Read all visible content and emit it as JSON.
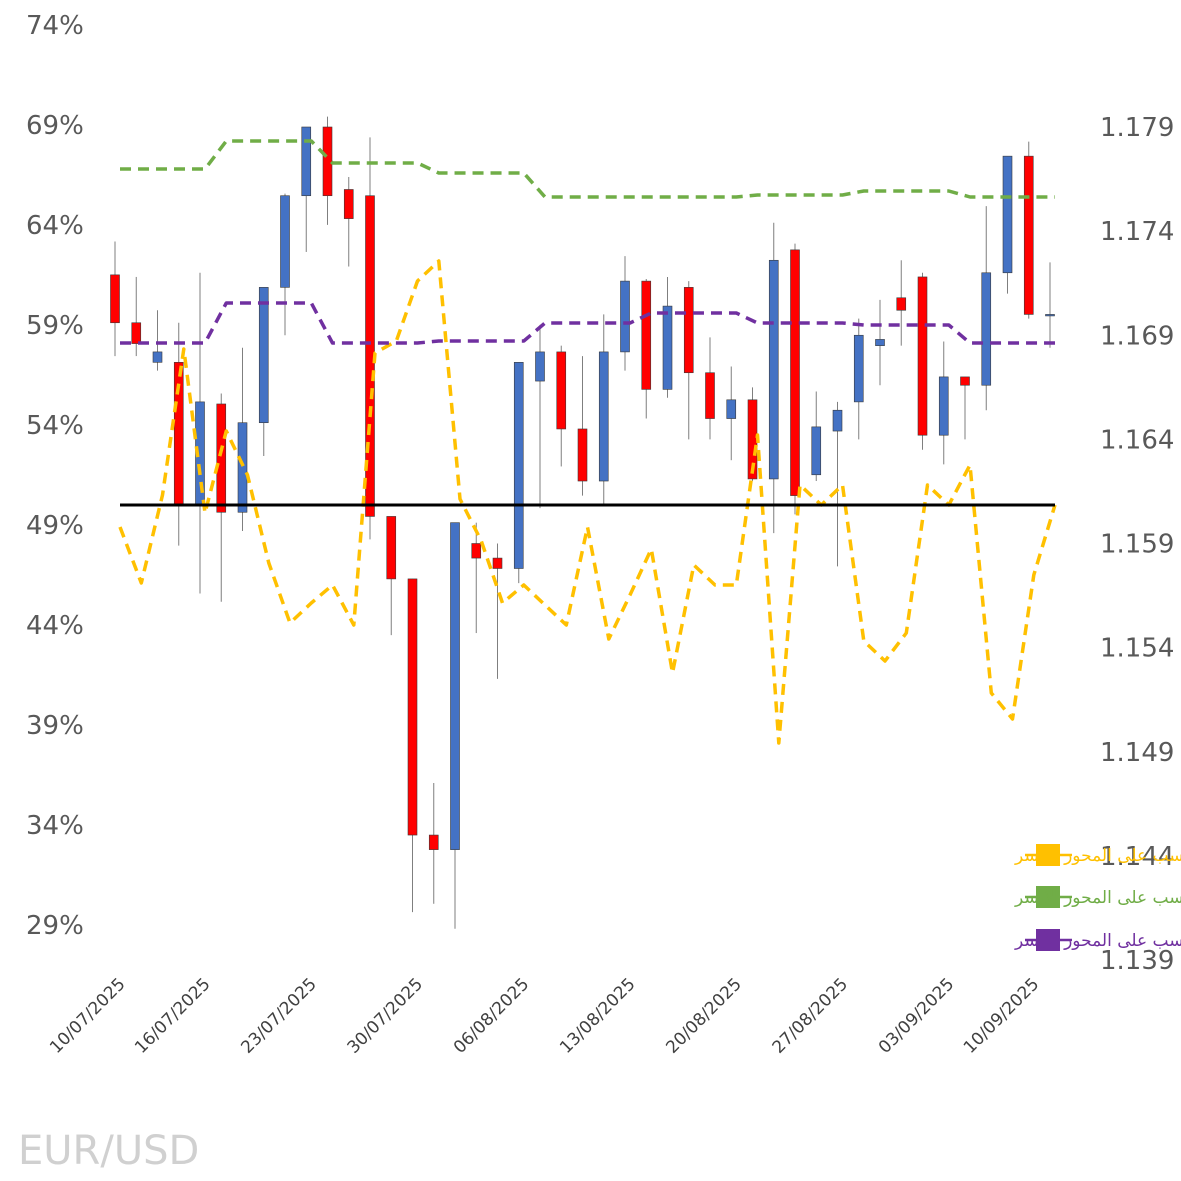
{
  "pair_label": "EUR/USD",
  "chart_data": {
    "type": "candlestick",
    "title": "EUR/USD",
    "y_left": {
      "range": [
        0.27,
        0.74
      ],
      "ticks": [
        0.29,
        0.34,
        0.39,
        0.44,
        0.49,
        0.54,
        0.59,
        0.64,
        0.69,
        0.74
      ],
      "tick_labels": [
        "29%",
        "34%",
        "39%",
        "44%",
        "49%",
        "54%",
        "59%",
        "64%",
        "69%",
        "74%"
      ]
    },
    "y_right": {
      "range": [
        1.139,
        1.179
      ],
      "ticks": [
        1.139,
        1.144,
        1.149,
        1.154,
        1.159,
        1.164,
        1.169,
        1.174,
        1.179
      ],
      "tick_labels": [
        "1.139",
        "1.144",
        "1.149",
        "1.154",
        "1.159",
        "1.164",
        "1.169",
        "1.174",
        "1.179"
      ]
    },
    "x_tick_labels": [
      {
        "index": 0,
        "label": "10/07/2025"
      },
      {
        "index": 4,
        "label": "16/07/2025"
      },
      {
        "index": 9,
        "label": "23/07/2025"
      },
      {
        "index": 14,
        "label": "30/07/2025"
      },
      {
        "index": 19,
        "label": "06/08/2025"
      },
      {
        "index": 24,
        "label": "13/08/2025"
      },
      {
        "index": 29,
        "label": "20/08/2025"
      },
      {
        "index": 34,
        "label": "27/08/2025"
      },
      {
        "index": 39,
        "label": "03/09/2025"
      },
      {
        "index": 43,
        "label": "10/09/2025"
      }
    ],
    "reference_line": 0.5,
    "candles": [
      {
        "o": 1.1719,
        "h": 1.1735,
        "l": 1.168,
        "c": 1.1696
      },
      {
        "o": 1.1696,
        "h": 1.1718,
        "l": 1.168,
        "c": 1.1686
      },
      {
        "o": 1.1677,
        "h": 1.1702,
        "l": 1.1673,
        "c": 1.1682
      },
      {
        "o": 1.1677,
        "h": 1.1696,
        "l": 1.1589,
        "c": 1.1609
      },
      {
        "o": 1.1609,
        "h": 1.172,
        "l": 1.1566,
        "c": 1.1658
      },
      {
        "o": 1.1657,
        "h": 1.1662,
        "l": 1.1562,
        "c": 1.1605
      },
      {
        "o": 1.1605,
        "h": 1.1684,
        "l": 1.1596,
        "c": 1.1648
      },
      {
        "o": 1.1648,
        "h": 1.1705,
        "l": 1.1632,
        "c": 1.1713
      },
      {
        "o": 1.1713,
        "h": 1.1758,
        "l": 1.169,
        "c": 1.1757
      },
      {
        "o": 1.1757,
        "h": 1.178,
        "l": 1.173,
        "c": 1.179
      },
      {
        "o": 1.179,
        "h": 1.1795,
        "l": 1.1743,
        "c": 1.1757
      },
      {
        "o": 1.176,
        "h": 1.1766,
        "l": 1.1723,
        "c": 1.1746
      },
      {
        "o": 1.1757,
        "h": 1.1785,
        "l": 1.1592,
        "c": 1.1603
      },
      {
        "o": 1.1603,
        "h": 1.1595,
        "l": 1.1546,
        "c": 1.1573
      },
      {
        "o": 1.1573,
        "h": 1.155,
        "l": 1.1413,
        "c": 1.145
      },
      {
        "o": 1.145,
        "h": 1.1475,
        "l": 1.1417,
        "c": 1.1443
      },
      {
        "o": 1.1443,
        "h": 1.1587,
        "l": 1.1405,
        "c": 1.16
      },
      {
        "o": 1.159,
        "h": 1.16,
        "l": 1.1547,
        "c": 1.1583
      },
      {
        "o": 1.1583,
        "h": 1.159,
        "l": 1.1525,
        "c": 1.1578
      },
      {
        "o": 1.1578,
        "h": 1.167,
        "l": 1.1571,
        "c": 1.1677
      },
      {
        "o": 1.1668,
        "h": 1.1695,
        "l": 1.1607,
        "c": 1.1682
      },
      {
        "o": 1.1682,
        "h": 1.1685,
        "l": 1.1627,
        "c": 1.1645
      },
      {
        "o": 1.1645,
        "h": 1.168,
        "l": 1.1613,
        "c": 1.162
      },
      {
        "o": 1.162,
        "h": 1.17,
        "l": 1.1609,
        "c": 1.1682
      },
      {
        "o": 1.1682,
        "h": 1.1728,
        "l": 1.1673,
        "c": 1.1716
      },
      {
        "o": 1.1716,
        "h": 1.1717,
        "l": 1.165,
        "c": 1.1664
      },
      {
        "o": 1.1664,
        "h": 1.1718,
        "l": 1.166,
        "c": 1.1704
      },
      {
        "o": 1.1713,
        "h": 1.1716,
        "l": 1.164,
        "c": 1.1672
      },
      {
        "o": 1.1672,
        "h": 1.1689,
        "l": 1.164,
        "c": 1.165
      },
      {
        "o": 1.165,
        "h": 1.1675,
        "l": 1.163,
        "c": 1.1659
      },
      {
        "o": 1.1659,
        "h": 1.1665,
        "l": 1.162,
        "c": 1.1621
      },
      {
        "o": 1.1621,
        "h": 1.1744,
        "l": 1.1595,
        "c": 1.1726
      },
      {
        "o": 1.1731,
        "h": 1.1734,
        "l": 1.1604,
        "c": 1.1613
      },
      {
        "o": 1.1623,
        "h": 1.1663,
        "l": 1.162,
        "c": 1.1646
      },
      {
        "o": 1.1644,
        "h": 1.1658,
        "l": 1.1579,
        "c": 1.1654
      },
      {
        "o": 1.1658,
        "h": 1.1698,
        "l": 1.164,
        "c": 1.169
      },
      {
        "o": 1.1685,
        "h": 1.1707,
        "l": 1.1666,
        "c": 1.1688
      },
      {
        "o": 1.1708,
        "h": 1.1726,
        "l": 1.1685,
        "c": 1.1702
      },
      {
        "o": 1.1718,
        "h": 1.172,
        "l": 1.1635,
        "c": 1.1642
      },
      {
        "o": 1.1642,
        "h": 1.1687,
        "l": 1.1628,
        "c": 1.167
      },
      {
        "o": 1.167,
        "h": 1.1665,
        "l": 1.164,
        "c": 1.1666
      },
      {
        "o": 1.1666,
        "h": 1.1752,
        "l": 1.1654,
        "c": 1.172
      },
      {
        "o": 1.172,
        "h": 1.1773,
        "l": 1.171,
        "c": 1.1776
      },
      {
        "o": 1.1776,
        "h": 1.1783,
        "l": 1.1698,
        "c": 1.17
      },
      {
        "o": 1.17,
        "h": 1.1725,
        "l": 1.1684,
        "c": 1.17
      }
    ],
    "series": [
      {
        "name": "توجه عملاء، نسبة الشراء، النسب على المحور الأيسر",
        "color": "#FFC000",
        "axis": "left",
        "values": [
          0.489,
          0.461,
          0.505,
          0.578,
          0.496,
          0.537,
          0.515,
          0.471,
          0.441,
          0.451,
          0.46,
          0.44,
          0.576,
          0.582,
          0.612,
          0.622,
          0.503,
          0.482,
          0.451,
          0.46,
          0.45,
          0.44,
          0.489,
          0.433,
          0.455,
          0.478,
          0.416,
          0.47,
          0.46,
          0.46,
          0.535,
          0.381,
          0.51,
          0.5,
          0.51,
          0.432,
          0.422,
          0.436,
          0.51,
          0.5,
          0.52,
          0.406,
          0.393,
          0.465,
          0.5
        ]
      },
      {
        "name": "توجه المؤسسات، نسبة الشراء، النسب على المحور الأيسر",
        "color": "#70AD47",
        "axis": "left",
        "values": [
          0.668,
          0.668,
          0.668,
          0.668,
          0.668,
          0.682,
          0.682,
          0.682,
          0.682,
          0.682,
          0.671,
          0.671,
          0.671,
          0.671,
          0.671,
          0.666,
          0.666,
          0.666,
          0.666,
          0.666,
          0.654,
          0.654,
          0.654,
          0.654,
          0.654,
          0.654,
          0.654,
          0.654,
          0.654,
          0.654,
          0.655,
          0.655,
          0.655,
          0.655,
          0.655,
          0.657,
          0.657,
          0.657,
          0.657,
          0.657,
          0.654,
          0.654,
          0.654,
          0.654,
          0.654
        ]
      },
      {
        "name": "توجه صناديق الرفع المالي، نسبة الشراء، النسب على المحور الأيسر",
        "color": "#7030A0",
        "axis": "left",
        "values": [
          0.581,
          0.581,
          0.581,
          0.581,
          0.581,
          0.601,
          0.601,
          0.601,
          0.601,
          0.601,
          0.581,
          0.581,
          0.581,
          0.581,
          0.581,
          0.582,
          0.582,
          0.582,
          0.582,
          0.582,
          0.591,
          0.591,
          0.591,
          0.591,
          0.591,
          0.596,
          0.596,
          0.596,
          0.596,
          0.596,
          0.591,
          0.591,
          0.591,
          0.591,
          0.591,
          0.59,
          0.59,
          0.59,
          0.59,
          0.59,
          0.581,
          0.581,
          0.581,
          0.581,
          0.581
        ]
      }
    ],
    "candle_colors": {
      "up": "#4472C4",
      "down": "#FF0000"
    }
  }
}
